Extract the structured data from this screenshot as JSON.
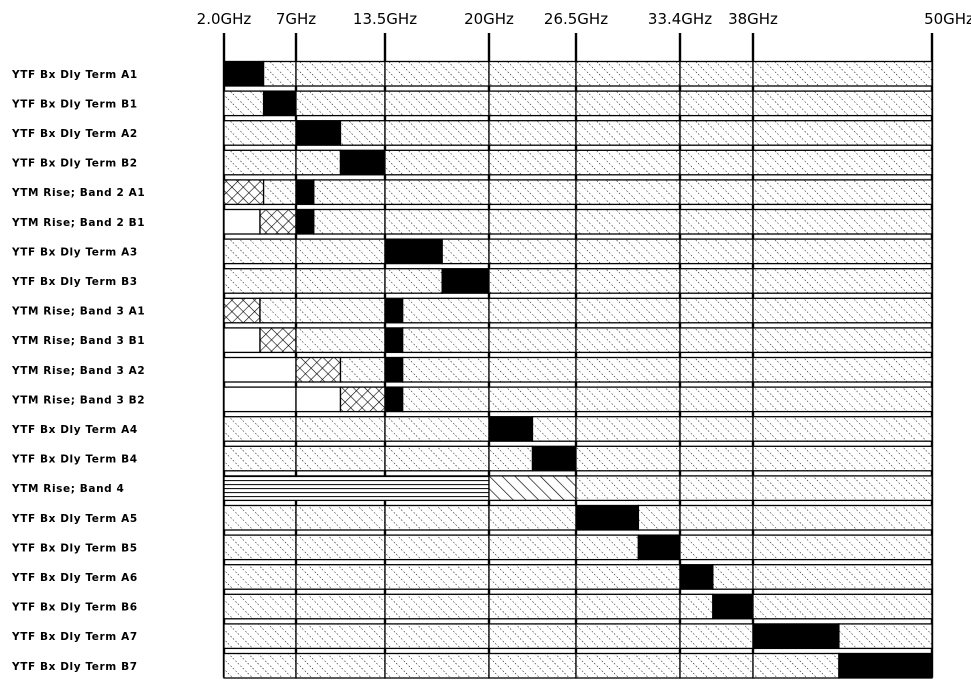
{
  "frequencies": [
    "2.0GHz",
    "7GHz",
    "13.5GHz",
    "20GHz",
    "26.5GHz",
    "33.4GHz",
    "38GHz",
    "50GHz"
  ],
  "legend_patterns": {
    "dotted_diagonal": "fine diagonal hatch (default fill)",
    "solid": "solid black",
    "crosshatch": "crosshatch",
    "horizontal": "horizontal lines",
    "diagonal": "bold diagonal lines",
    "blank": "blank"
  },
  "rows": [
    {
      "label": "YTF  Bx  Dly  Term  A1",
      "segments": [
        [
          "solid",
          0,
          0.55
        ],
        [
          "hatch",
          0.55,
          1
        ],
        [
          "hatch",
          1,
          2
        ],
        [
          "hatch",
          2,
          3
        ],
        [
          "hatch",
          3,
          4
        ],
        [
          "hatch",
          4,
          5
        ],
        [
          "hatch",
          5,
          6
        ],
        [
          "hatch",
          6,
          7
        ]
      ]
    },
    {
      "label": "YTF  Bx  Dly  Term  B1",
      "segments": [
        [
          "hatch",
          0,
          0.55
        ],
        [
          "solid",
          0.55,
          1
        ],
        [
          "hatch",
          1,
          2
        ],
        [
          "hatch",
          2,
          3
        ],
        [
          "hatch",
          3,
          4
        ],
        [
          "hatch",
          4,
          5
        ],
        [
          "hatch",
          5,
          6
        ],
        [
          "hatch",
          6,
          7
        ]
      ]
    },
    {
      "label": "YTF  Bx  Dly  Term  A2",
      "segments": [
        [
          "hatch",
          0,
          1
        ],
        [
          "solid",
          1,
          1.5
        ],
        [
          "hatch",
          1.5,
          2
        ],
        [
          "hatch",
          2,
          3
        ],
        [
          "hatch",
          3,
          4
        ],
        [
          "hatch",
          4,
          5
        ],
        [
          "hatch",
          5,
          6
        ],
        [
          "hatch",
          6,
          7
        ]
      ]
    },
    {
      "label": "YTF  Bx  Dly  Term  B2",
      "segments": [
        [
          "hatch",
          0,
          1
        ],
        [
          "hatch",
          1,
          1.5
        ],
        [
          "solid",
          1.5,
          2
        ],
        [
          "hatch",
          2,
          3
        ],
        [
          "hatch",
          3,
          4
        ],
        [
          "hatch",
          4,
          5
        ],
        [
          "hatch",
          5,
          6
        ],
        [
          "hatch",
          6,
          7
        ]
      ]
    },
    {
      "label": "YTM  Rise;  Band  2  A1",
      "segments": [
        [
          "cross",
          0,
          0.55
        ],
        [
          "hatch",
          0.55,
          1
        ],
        [
          "solid",
          1,
          1.2
        ],
        [
          "hatch",
          1.2,
          2
        ],
        [
          "hatch",
          2,
          3
        ],
        [
          "hatch",
          3,
          4
        ],
        [
          "hatch",
          4,
          5
        ],
        [
          "hatch",
          5,
          6
        ],
        [
          "hatch",
          6,
          7
        ]
      ]
    },
    {
      "label": "YTM  Rise;  Band  2  B1",
      "segments": [
        [
          "blank",
          0,
          0.5
        ],
        [
          "cross",
          0.5,
          1
        ],
        [
          "solid",
          1,
          1.2
        ],
        [
          "hatch",
          1.2,
          2
        ],
        [
          "hatch",
          2,
          3
        ],
        [
          "hatch",
          3,
          4
        ],
        [
          "hatch",
          4,
          5
        ],
        [
          "hatch",
          5,
          6
        ],
        [
          "hatch",
          6,
          7
        ]
      ]
    },
    {
      "label": "YTF  Bx  Dly  Term  A3",
      "segments": [
        [
          "hatch",
          0,
          1
        ],
        [
          "hatch",
          1,
          2
        ],
        [
          "solid",
          2,
          2.55
        ],
        [
          "hatch",
          2.55,
          3
        ],
        [
          "hatch",
          3,
          4
        ],
        [
          "hatch",
          4,
          5
        ],
        [
          "hatch",
          5,
          6
        ],
        [
          "hatch",
          6,
          7
        ]
      ]
    },
    {
      "label": "YTF  Bx  Dly  Term  B3",
      "segments": [
        [
          "hatch",
          0,
          1
        ],
        [
          "hatch",
          1,
          2
        ],
        [
          "hatch",
          2,
          2.55
        ],
        [
          "solid",
          2.55,
          3
        ],
        [
          "hatch",
          3,
          4
        ],
        [
          "hatch",
          4,
          5
        ],
        [
          "hatch",
          5,
          6
        ],
        [
          "hatch",
          6,
          7
        ]
      ]
    },
    {
      "label": "YTM  Rise;  Band  3  A1",
      "segments": [
        [
          "cross",
          0,
          0.5
        ],
        [
          "hatch",
          0.5,
          1
        ],
        [
          "hatch",
          1,
          2
        ],
        [
          "solid",
          2,
          2.17
        ],
        [
          "hatch",
          2.17,
          3
        ],
        [
          "hatch",
          3,
          4
        ],
        [
          "hatch",
          4,
          5
        ],
        [
          "hatch",
          5,
          6
        ],
        [
          "hatch",
          6,
          7
        ]
      ]
    },
    {
      "label": "YTM  Rise;  Band  3  B1",
      "segments": [
        [
          "blank",
          0,
          0.5
        ],
        [
          "cross",
          0.5,
          1
        ],
        [
          "hatch",
          1,
          2
        ],
        [
          "solid",
          2,
          2.17
        ],
        [
          "hatch",
          2.17,
          3
        ],
        [
          "hatch",
          3,
          4
        ],
        [
          "hatch",
          4,
          5
        ],
        [
          "hatch",
          5,
          6
        ],
        [
          "hatch",
          6,
          7
        ]
      ]
    },
    {
      "label": "YTM  Rise;  Band  3  A2",
      "segments": [
        [
          "blank",
          0,
          1
        ],
        [
          "cross",
          1,
          1.5
        ],
        [
          "hatch",
          1.5,
          2
        ],
        [
          "solid",
          2,
          2.17
        ],
        [
          "hatch",
          2.17,
          3
        ],
        [
          "hatch",
          3,
          4
        ],
        [
          "hatch",
          4,
          5
        ],
        [
          "hatch",
          5,
          6
        ],
        [
          "hatch",
          6,
          7
        ]
      ]
    },
    {
      "label": "YTM  Rise;  Band  3  B2",
      "segments": [
        [
          "blank",
          0,
          1
        ],
        [
          "blank",
          1,
          1.5
        ],
        [
          "cross",
          1.5,
          2
        ],
        [
          "solid",
          2,
          2.17
        ],
        [
          "hatch",
          2.17,
          3
        ],
        [
          "hatch",
          3,
          4
        ],
        [
          "hatch",
          4,
          5
        ],
        [
          "hatch",
          5,
          6
        ],
        [
          "hatch",
          6,
          7
        ]
      ]
    },
    {
      "label": "YTF  Bx  Dly  Term  A4",
      "segments": [
        [
          "hatch",
          0,
          1
        ],
        [
          "hatch",
          1,
          2
        ],
        [
          "hatch",
          2,
          3
        ],
        [
          "solid",
          3,
          3.5
        ],
        [
          "hatch",
          3.5,
          4
        ],
        [
          "hatch",
          4,
          5
        ],
        [
          "hatch",
          5,
          6
        ],
        [
          "hatch",
          6,
          7
        ]
      ]
    },
    {
      "label": "YTF  Bx  Dly  Term  B4",
      "segments": [
        [
          "hatch",
          0,
          1
        ],
        [
          "hatch",
          1,
          2
        ],
        [
          "hatch",
          2,
          3
        ],
        [
          "hatch",
          3,
          3.5
        ],
        [
          "solid",
          3.5,
          4
        ],
        [
          "hatch",
          4,
          5
        ],
        [
          "hatch",
          5,
          6
        ],
        [
          "hatch",
          6,
          7
        ]
      ]
    },
    {
      "label": "YTM  Rise;  Band  4",
      "segments": [
        [
          "horiz",
          0,
          3
        ],
        [
          "diag",
          3,
          4
        ],
        [
          "hatch",
          4,
          5
        ],
        [
          "hatch",
          5,
          6
        ],
        [
          "hatch",
          6,
          7
        ]
      ]
    },
    {
      "label": "YTF  Bx  Dly  Term  A5",
      "segments": [
        [
          "hatch",
          0,
          1
        ],
        [
          "hatch",
          1,
          2
        ],
        [
          "hatch",
          2,
          3
        ],
        [
          "hatch",
          3,
          4
        ],
        [
          "solid",
          4,
          4.6
        ],
        [
          "hatch",
          4.6,
          5
        ],
        [
          "hatch",
          5,
          6
        ],
        [
          "hatch",
          6,
          7
        ]
      ]
    },
    {
      "label": "YTF  Bx  Dly  Term  B5",
      "segments": [
        [
          "hatch",
          0,
          1
        ],
        [
          "hatch",
          1,
          2
        ],
        [
          "hatch",
          2,
          3
        ],
        [
          "hatch",
          3,
          4
        ],
        [
          "hatch",
          4,
          4.6
        ],
        [
          "solid",
          4.6,
          5
        ],
        [
          "hatch",
          5,
          6
        ],
        [
          "hatch",
          6,
          7
        ]
      ]
    },
    {
      "label": "YTF  Bx  Dly  Term  A6",
      "segments": [
        [
          "hatch",
          0,
          1
        ],
        [
          "hatch",
          1,
          2
        ],
        [
          "hatch",
          2,
          3
        ],
        [
          "hatch",
          3,
          4
        ],
        [
          "hatch",
          4,
          5
        ],
        [
          "solid",
          5,
          5.45
        ],
        [
          "hatch",
          5.45,
          6
        ],
        [
          "hatch",
          6,
          7
        ]
      ]
    },
    {
      "label": "YTF  Bx  Dly  Term  B6",
      "segments": [
        [
          "hatch",
          0,
          1
        ],
        [
          "hatch",
          1,
          2
        ],
        [
          "hatch",
          2,
          3
        ],
        [
          "hatch",
          3,
          4
        ],
        [
          "hatch",
          4,
          5
        ],
        [
          "hatch",
          5,
          5.45
        ],
        [
          "solid",
          5.45,
          6
        ],
        [
          "hatch",
          6,
          7
        ]
      ]
    },
    {
      "label": "YTF  Bx  Dly  Term  A7",
      "segments": [
        [
          "hatch",
          0,
          1
        ],
        [
          "hatch",
          1,
          2
        ],
        [
          "hatch",
          2,
          3
        ],
        [
          "hatch",
          3,
          4
        ],
        [
          "hatch",
          4,
          5
        ],
        [
          "hatch",
          5,
          6
        ],
        [
          "solid",
          6,
          6.48
        ],
        [
          "hatch",
          6.48,
          7
        ]
      ]
    },
    {
      "label": "YTF  Bx  Dly  Term  B7",
      "segments": [
        [
          "hatch",
          0,
          1
        ],
        [
          "hatch",
          1,
          2
        ],
        [
          "hatch",
          2,
          3
        ],
        [
          "hatch",
          3,
          4
        ],
        [
          "hatch",
          4,
          5
        ],
        [
          "hatch",
          5,
          6
        ],
        [
          "hatch",
          6,
          6.48
        ],
        [
          "solid",
          6.48,
          7
        ]
      ]
    }
  ]
}
